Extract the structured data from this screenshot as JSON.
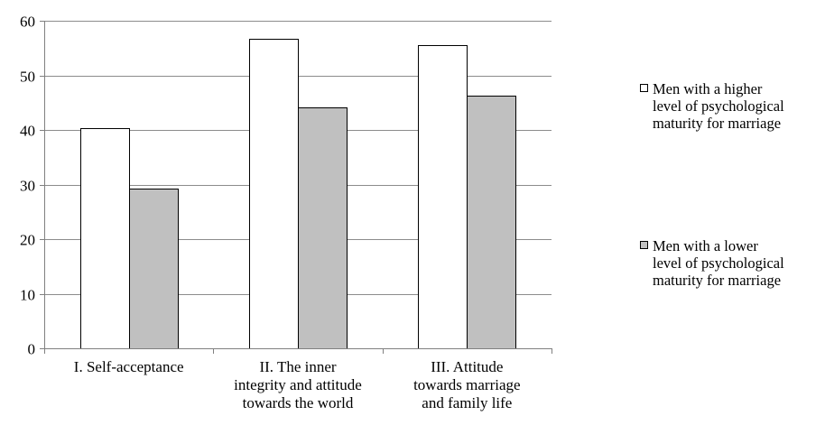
{
  "chart_data": {
    "type": "bar",
    "categories": [
      [
        "I. Self-acceptance"
      ],
      [
        "II. The inner",
        "integrity and attitude",
        "towards the world"
      ],
      [
        "III. Attitude",
        "towards marriage",
        "and family life"
      ]
    ],
    "series": [
      {
        "name": "Men with a higher level of psychological maturity for marriage",
        "legend_lines": [
          "Men with a higher",
          "level of psychological",
          "maturity for marriage"
        ],
        "color": "#ffffff",
        "values": [
          40.4,
          56.7,
          55.5
        ]
      },
      {
        "name": "Men with a lower level of psychological maturity for marriage",
        "legend_lines": [
          "Men with a lower",
          "level of psychological",
          "maturity for marriage"
        ],
        "color": "#c0c0c0",
        "values": [
          29.3,
          44.1,
          46.2
        ]
      }
    ],
    "ylim": [
      0,
      60
    ],
    "yticks": [
      "0",
      "10",
      "20",
      "30",
      "40",
      "50",
      "60"
    ],
    "grid": true,
    "legend_position": "right"
  }
}
